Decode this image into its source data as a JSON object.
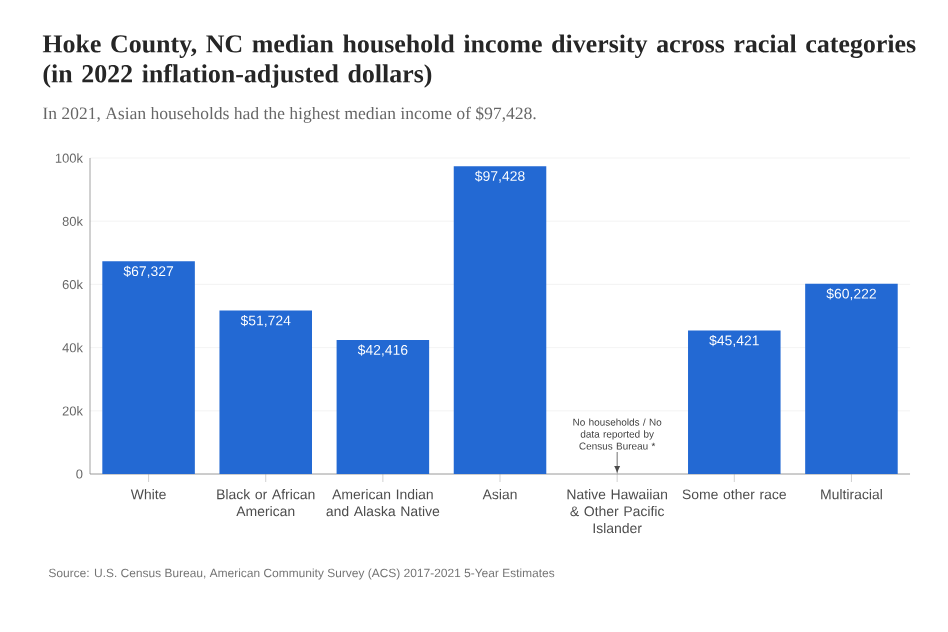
{
  "chart_data": {
    "type": "bar",
    "title": "Hoke County, NC median household income diversity across racial categories (in 2022 inflation-adjusted dollars)",
    "subtitle": "In 2021, Asian households had the highest median income of $97,428.",
    "categories": [
      "White",
      "Black or African American",
      "American Indian and Alaska Native",
      "Asian",
      "Native Hawaiian & Other Pacific Islander",
      "Some other race",
      "Multiracial"
    ],
    "values": [
      67327,
      51724,
      42416,
      97428,
      null,
      45421,
      60222
    ],
    "value_labels": [
      "$67,327",
      "$51,724",
      "$42,416",
      "$97,428",
      null,
      "$45,421",
      "$60,222"
    ],
    "color": "#2369d3",
    "ylim": [
      0,
      100000
    ],
    "yticks": [
      {
        "value": 0,
        "label": "0"
      },
      {
        "value": 20000,
        "label": "20k"
      },
      {
        "value": 40000,
        "label": "40k"
      },
      {
        "value": 60000,
        "label": "60k"
      },
      {
        "value": 80000,
        "label": "80k"
      },
      {
        "value": 100000,
        "label": "100k"
      }
    ],
    "grid": "y",
    "annotations": [
      "No households / No data reported by Census Bureau *",
      "Source: U.S. Census Bureau, American Community Survey (ACS) 2017-2021 5-Year Estimates"
    ]
  }
}
